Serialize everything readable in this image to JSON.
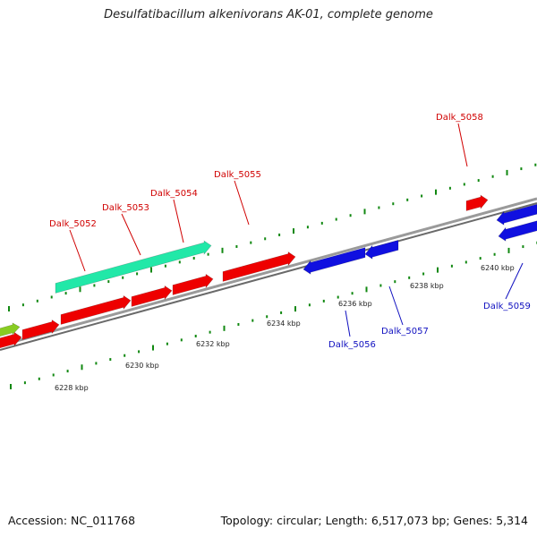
{
  "title": "Desulfatibacillum alkenivorans AK-01, complete genome",
  "footer": {
    "accession": "Accession: NC_011768",
    "topology": "Topology: circular; Length: 6,517,073 bp; Genes: 5,314"
  },
  "colors": {
    "forward_gene": "#ee0000",
    "reverse_gene": "#1010e0",
    "rna_gene": "#22e8a8",
    "other_gene": "#88cc22",
    "forward_label": "#d00000",
    "reverse_label": "#1010c0",
    "backbone": "#888888",
    "tick_forward": "#118811",
    "tick_reverse": "#118811"
  },
  "gene_labels": [
    {
      "text": "Dalk_5052",
      "strand": "forward"
    },
    {
      "text": "Dalk_5053",
      "strand": "forward"
    },
    {
      "text": "Dalk_5054",
      "strand": "forward"
    },
    {
      "text": "Dalk_5055",
      "strand": "forward"
    },
    {
      "text": "Dalk_5058",
      "strand": "forward"
    },
    {
      "text": "Dalk_5056",
      "strand": "reverse"
    },
    {
      "text": "Dalk_5057",
      "strand": "reverse"
    },
    {
      "text": "Dalk_5059",
      "strand": "reverse"
    }
  ],
  "kbp_labels": [
    "6228 kbp",
    "6230 kbp",
    "6232 kbp",
    "6234 kbp",
    "6236 kbp",
    "6238 kbp",
    "6240 kbp"
  ]
}
